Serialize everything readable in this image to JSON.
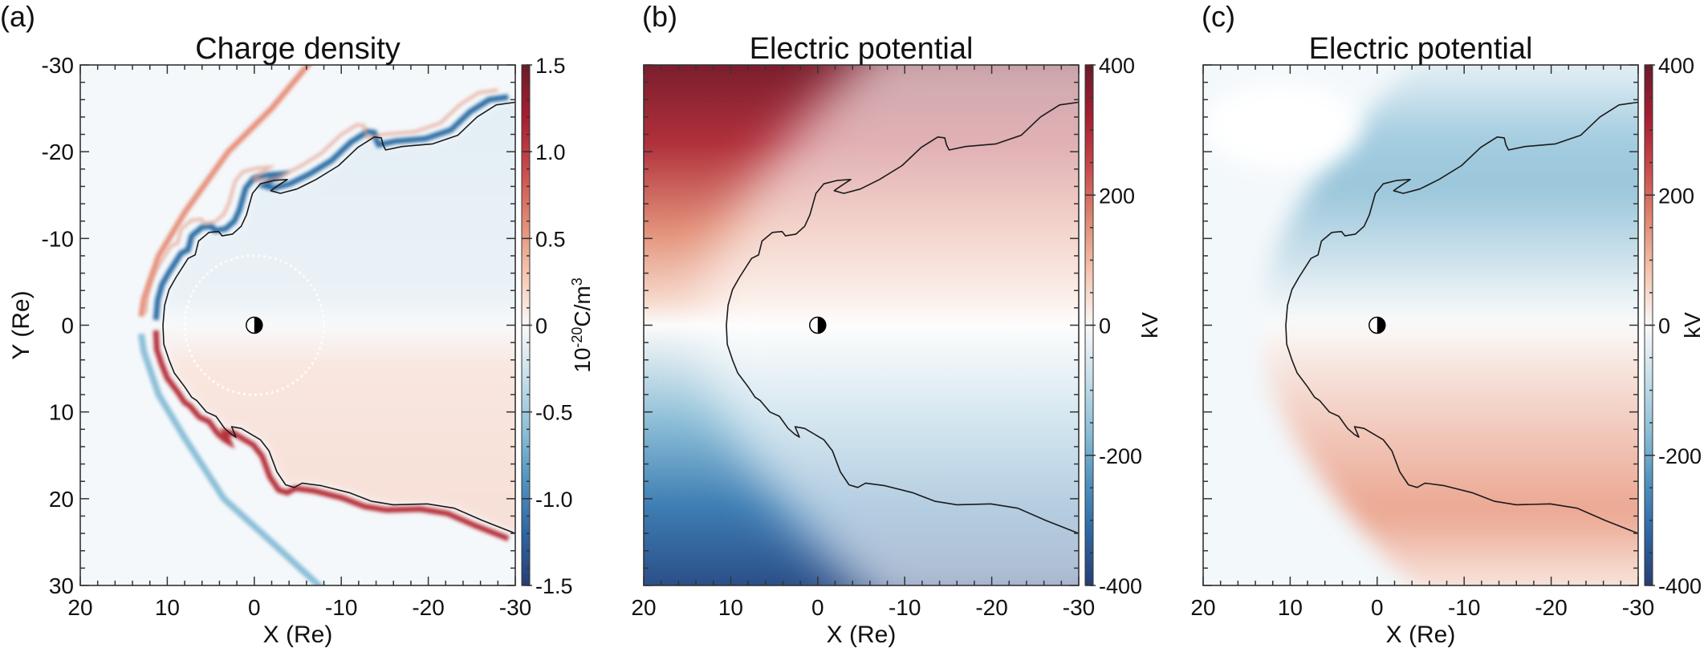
{
  "chart_data": [
    {
      "type": "heatmap",
      "panel_label": "(a)",
      "title": "Charge density",
      "xlabel": "X (Re)",
      "ylabel": "Y (Re)",
      "xlim": [
        20,
        -30
      ],
      "ylim": [
        -30,
        30
      ],
      "xticks": [
        20,
        10,
        0,
        -10,
        -20,
        -30
      ],
      "xtick_labels": [
        "20",
        "10",
        "0",
        "-10",
        "-20",
        "-30"
      ],
      "yticks": [
        -30,
        -20,
        -10,
        0,
        10,
        20,
        30
      ],
      "ytick_labels": [
        "-30",
        "-20",
        "-10",
        "0",
        "10",
        "20",
        "30"
      ],
      "show_ytick_labels": true,
      "colorbar": {
        "range": [
          -1.5,
          1.5
        ],
        "ticks": [
          1.5,
          1.0,
          0.5,
          0,
          -0.5,
          -1.0,
          -1.5
        ],
        "tick_labels": [
          "1.5",
          "1.0",
          "0.5",
          "0",
          "-0.5",
          "-1.0",
          "-1.5"
        ],
        "minor_step": 0.1,
        "label_base": "10",
        "label_exp": "-20",
        "label_unit": "C/m",
        "label_unit_exp": "3",
        "colormap": "RdBu_r"
      }
    },
    {
      "type": "heatmap",
      "panel_label": "(b)",
      "title": "Electric potential",
      "xlabel": "X (Re)",
      "xlim": [
        20,
        -30
      ],
      "ylim": [
        -30,
        30
      ],
      "xticks": [
        20,
        10,
        0,
        -10,
        -20,
        -30
      ],
      "xtick_labels": [
        "20",
        "10",
        "0",
        "-10",
        "-20",
        "-30"
      ],
      "yticks": [
        -30,
        -20,
        -10,
        0,
        10,
        20,
        30
      ],
      "show_ytick_labels": false,
      "colorbar": {
        "range": [
          -400,
          400
        ],
        "ticks": [
          400,
          200,
          0,
          -200,
          -400
        ],
        "tick_labels": [
          "400",
          "200",
          "0",
          "-200",
          "-400"
        ],
        "minor_step": 50,
        "label": "kV",
        "colormap": "RdBu_r"
      }
    },
    {
      "type": "heatmap",
      "panel_label": "(c)",
      "title": "Electric potential",
      "xlabel": "X (Re)",
      "xlim": [
        20,
        -30
      ],
      "ylim": [
        -30,
        30
      ],
      "xticks": [
        20,
        10,
        0,
        -10,
        -20,
        -30
      ],
      "xtick_labels": [
        "20",
        "10",
        "0",
        "-10",
        "-20",
        "-30"
      ],
      "yticks": [
        -30,
        -20,
        -10,
        0,
        10,
        20,
        30
      ],
      "show_ytick_labels": false,
      "colorbar": {
        "range": [
          -400,
          400
        ],
        "ticks": [
          400,
          200,
          0,
          -200,
          -400
        ],
        "tick_labels": [
          "400",
          "200",
          "0",
          "-200",
          "-400"
        ],
        "minor_step": 50,
        "label": "kV",
        "colormap": "RdBu_r"
      }
    }
  ],
  "magnetopause_contour": {
    "x": [
      -30,
      -27.8,
      -25.6,
      -23.4,
      -20.5,
      -17.0,
      -15.1,
      -14.8,
      -14.6,
      -13.8,
      -11.9,
      -9.7,
      -7.1,
      -4.9,
      -3.0,
      -1.9,
      -2.3,
      -3.8,
      -2.3,
      -0.7,
      0.2,
      0.9,
      1.5,
      2.5,
      3.7,
      4.1,
      5.2,
      6.4,
      6.8,
      7.6,
      9.0,
      9.8,
      10.3,
      10.5,
      10.4,
      9.8,
      9.2,
      8.0,
      7.2,
      6.6,
      5.5,
      4.4,
      3.4,
      2.6,
      2.1,
      2.6,
      1.5,
      -0.7,
      -1.7,
      -2.6,
      -3.6,
      -4.6,
      -5.5,
      -7.7,
      -10.9,
      -13.5,
      -16.0,
      -19.9,
      -23.0,
      -26.2,
      -30
    ],
    "y": [
      -25.7,
      -25.4,
      -24.0,
      -21.9,
      -20.9,
      -20.6,
      -20.2,
      -20.8,
      -21.6,
      -21.7,
      -20.5,
      -18.4,
      -16.8,
      -15.7,
      -15.2,
      -15.5,
      -15.8,
      -16.8,
      -16.7,
      -16.3,
      -15.2,
      -12.7,
      -11.4,
      -10.5,
      -10.3,
      -10.8,
      -10.7,
      -9.7,
      -8.1,
      -7.7,
      -5.5,
      -4.1,
      -2.3,
      0,
      2.2,
      4.0,
      5.5,
      7.1,
      8.3,
      8.7,
      10.0,
      10.5,
      11.9,
      12.6,
      12.9,
      11.7,
      11.9,
      13.2,
      14.5,
      16.9,
      18.4,
      18.7,
      18.2,
      18.5,
      19.3,
      20.3,
      20.7,
      20.6,
      21.1,
      22.5,
      24.0
    ]
  },
  "colors": {
    "axis": "#333333",
    "contour": "#1a1a1a",
    "red_max": "#6a1b2a",
    "blue_max": "#263e74",
    "neutral": "#f9f9f9"
  }
}
